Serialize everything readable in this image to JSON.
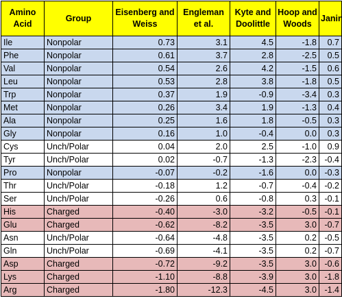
{
  "columns": [
    "Amino Acid",
    "Group",
    "Eisenberg and Weiss",
    "Engleman et al.",
    "Kyte and Doolittle",
    "Hoop and Woods",
    "Janin"
  ],
  "group_colors": {
    "Nonpolar": "#c9d8ee",
    "Unch/Polar": "#ffffff",
    "Charged": "#e7b9b9",
    "header": "#ffff00"
  },
  "rows": [
    {
      "aa": "Ile",
      "group": "Nonpolar",
      "ew": "0.73",
      "eng": "3.1",
      "kd": "4.5",
      "hw": "-1.8",
      "janin": "0.7"
    },
    {
      "aa": "Phe",
      "group": "Nonpolar",
      "ew": "0.61",
      "eng": "3.7",
      "kd": "2.8",
      "hw": "-2.5",
      "janin": "0.5"
    },
    {
      "aa": "Val",
      "group": "Nonpolar",
      "ew": "0.54",
      "eng": "2.6",
      "kd": "4.2",
      "hw": "-1.5",
      "janin": "0.6"
    },
    {
      "aa": "Leu",
      "group": "Nonpolar",
      "ew": "0.53",
      "eng": "2.8",
      "kd": "3.8",
      "hw": "-1.8",
      "janin": "0.5"
    },
    {
      "aa": "Trp",
      "group": "Nonpolar",
      "ew": "0.37",
      "eng": "1.9",
      "kd": "-0.9",
      "hw": "-3.4",
      "janin": "0.3"
    },
    {
      "aa": "Met",
      "group": "Nonpolar",
      "ew": "0.26",
      "eng": "3.4",
      "kd": "1.9",
      "hw": "-1.3",
      "janin": "0.4"
    },
    {
      "aa": "Ala",
      "group": "Nonpolar",
      "ew": "0.25",
      "eng": "1.6",
      "kd": "1.8",
      "hw": "-0.5",
      "janin": "0.3"
    },
    {
      "aa": "Gly",
      "group": "Nonpolar",
      "ew": "0.16",
      "eng": "1.0",
      "kd": "-0.4",
      "hw": "0.0",
      "janin": "0.3"
    },
    {
      "aa": "Cys",
      "group": "Unch/Polar",
      "ew": "0.04",
      "eng": "2.0",
      "kd": "2.5",
      "hw": "-1.0",
      "janin": "0.9"
    },
    {
      "aa": "Tyr",
      "group": "Unch/Polar",
      "ew": "0.02",
      "eng": "-0.7",
      "kd": "-1.3",
      "hw": "-2.3",
      "janin": "-0.4"
    },
    {
      "aa": "Pro",
      "group": "Nonpolar",
      "ew": "-0.07",
      "eng": "-0.2",
      "kd": "-1.6",
      "hw": "0.0",
      "janin": "-0.3"
    },
    {
      "aa": "Thr",
      "group": "Unch/Polar",
      "ew": "-0.18",
      "eng": "1.2",
      "kd": "-0.7",
      "hw": "-0.4",
      "janin": "-0.2"
    },
    {
      "aa": "Ser",
      "group": "Unch/Polar",
      "ew": "-0.26",
      "eng": "0.6",
      "kd": "-0.8",
      "hw": "0.3",
      "janin": "-0.1"
    },
    {
      "aa": "His",
      "group": "Charged",
      "ew": "-0.40",
      "eng": "-3.0",
      "kd": "-3.2",
      "hw": "-0.5",
      "janin": "-0.1"
    },
    {
      "aa": "Glu",
      "group": "Charged",
      "ew": "-0.62",
      "eng": "-8.2",
      "kd": "-3.5",
      "hw": "3.0",
      "janin": "-0.7"
    },
    {
      "aa": "Asn",
      "group": "Unch/Polar",
      "ew": "-0.64",
      "eng": "-4.8",
      "kd": "-3.5",
      "hw": "0.2",
      "janin": "-0.5"
    },
    {
      "aa": "Gln",
      "group": "Unch/Polar",
      "ew": "-0.69",
      "eng": "-4.1",
      "kd": "-3.5",
      "hw": "0.2",
      "janin": "-0.7"
    },
    {
      "aa": "Asp",
      "group": "Charged",
      "ew": "-0.72",
      "eng": "-9.2",
      "kd": "-3.5",
      "hw": "3.0",
      "janin": "-0.6"
    },
    {
      "aa": "Lys",
      "group": "Charged",
      "ew": "-1.10",
      "eng": "-8.8",
      "kd": "-3.9",
      "hw": "3.0",
      "janin": "-1.8"
    },
    {
      "aa": "Arg",
      "group": "Charged",
      "ew": "-1.80",
      "eng": "-12.3",
      "kd": "-4.5",
      "hw": "3.0",
      "janin": "-1.4"
    }
  ]
}
